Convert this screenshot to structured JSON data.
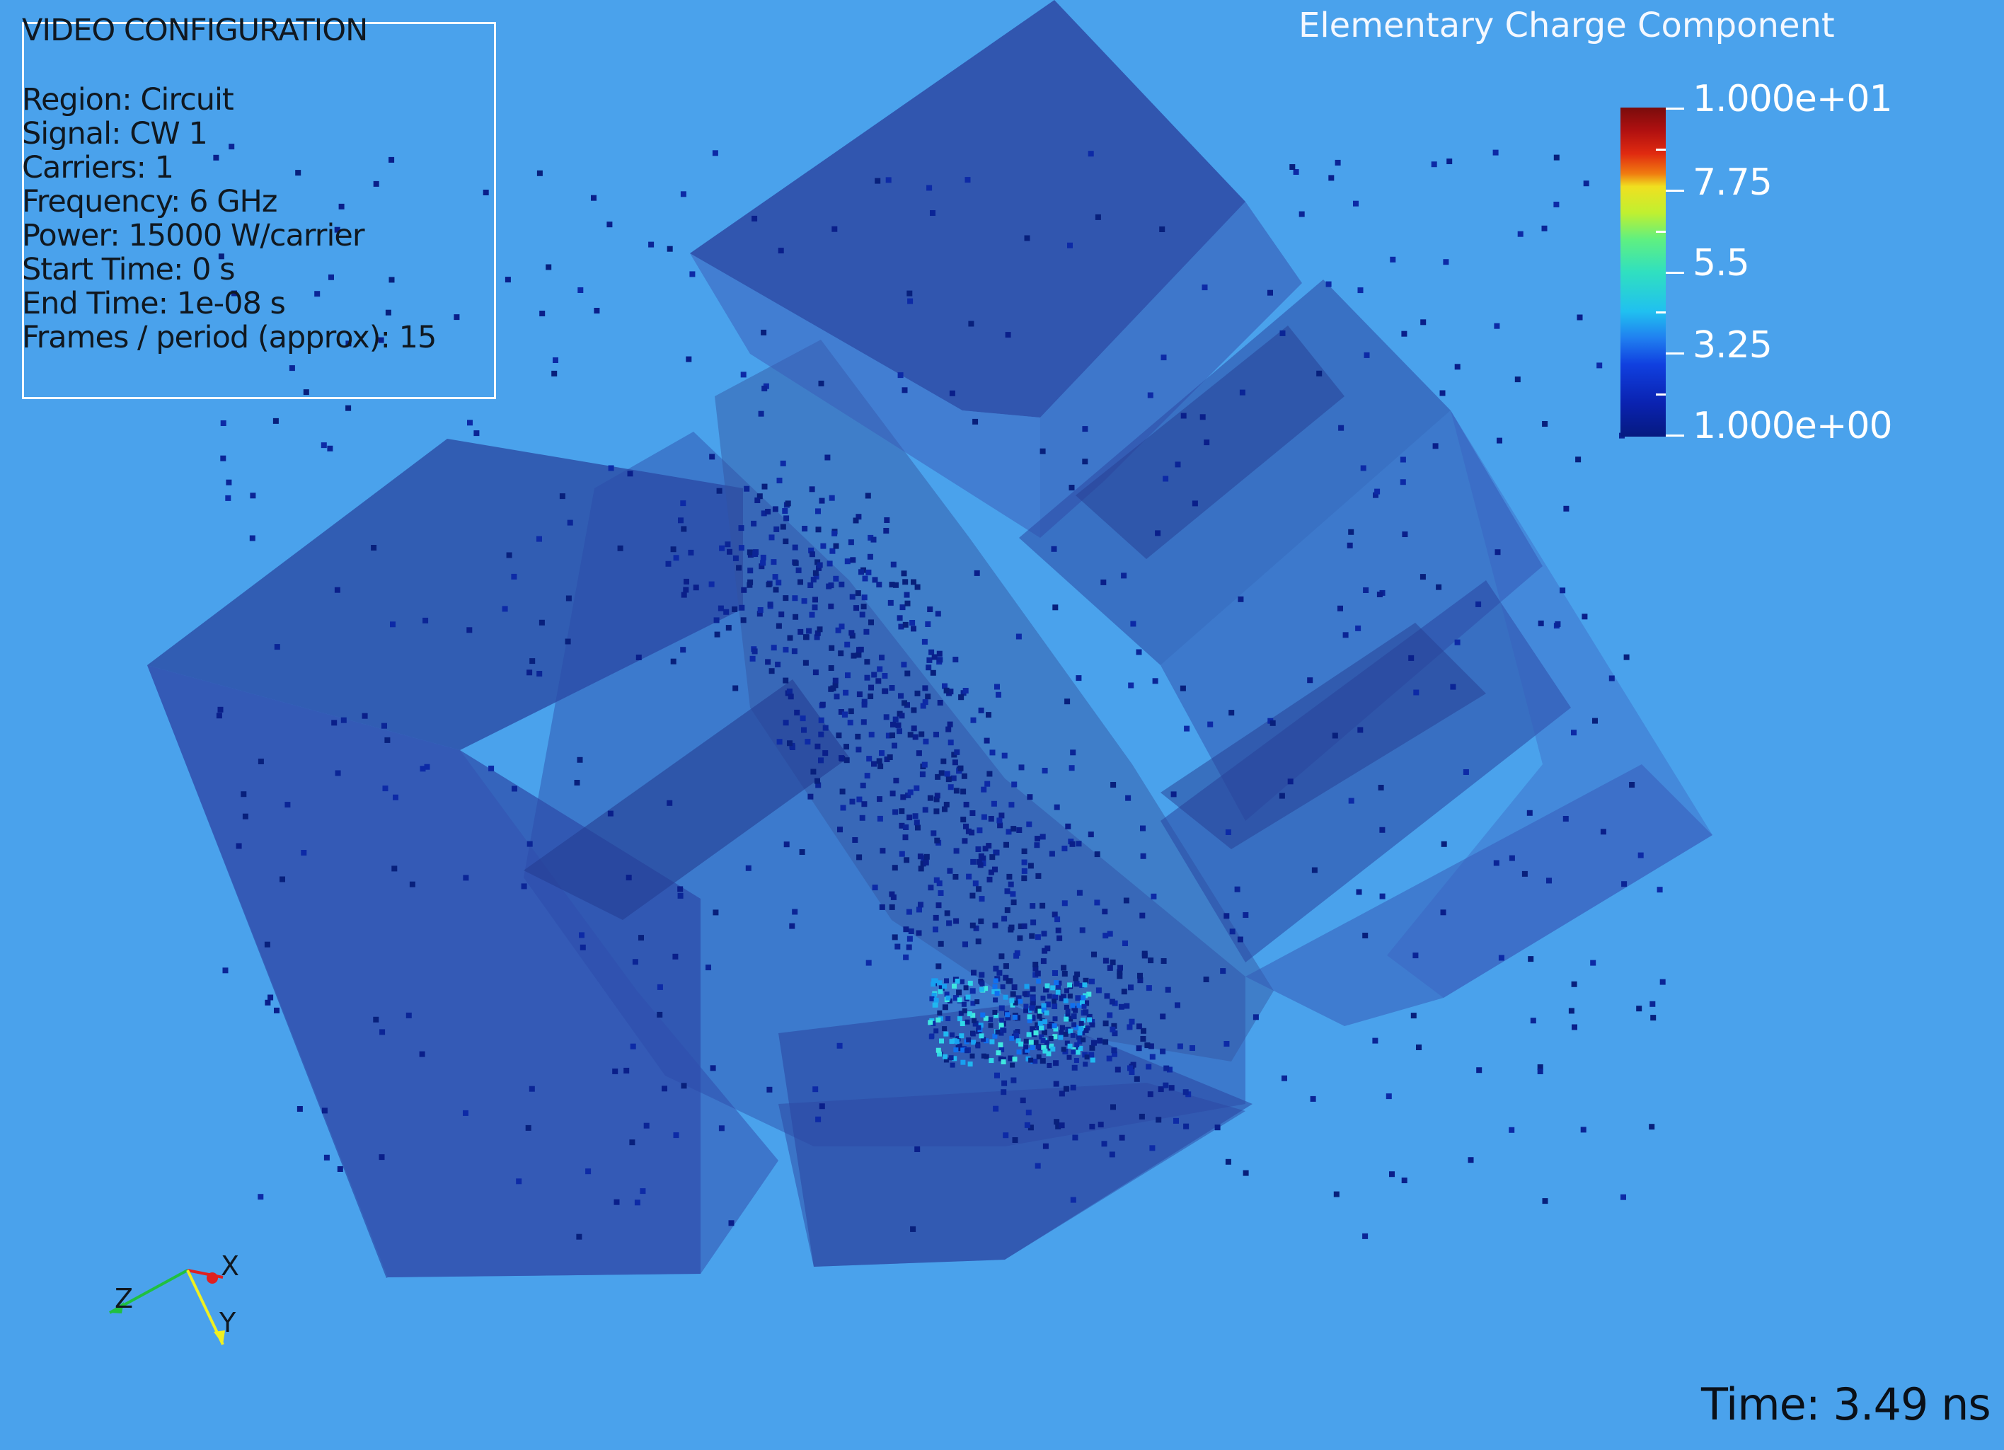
{
  "config": {
    "title": "VIDEO CONFIGURATION",
    "lines": [
      "Region: Circuit",
      "Signal: CW 1",
      "Carriers: 1",
      "Frequency: 6 GHz",
      "Power: 15000 W/carrier",
      "Start Time: 0 s",
      "End Time: 1e-08 s",
      "Frames / period (approx): 15"
    ]
  },
  "legend": {
    "title": "Elementary Charge Component",
    "labels": [
      "1.000e+01",
      "7.75",
      "5.5",
      "3.25",
      "1.000e+00"
    ],
    "max": 10,
    "min": 1
  },
  "time": "Time: 3.49 ns",
  "axes": {
    "x": "X",
    "y": "Y",
    "z": "Z"
  },
  "colors": {
    "background": "#4aa2ec",
    "geometry_fill": "#2a4aa0",
    "particle_low": "#0a2a9a",
    "particle_high": "#30e0e0"
  }
}
